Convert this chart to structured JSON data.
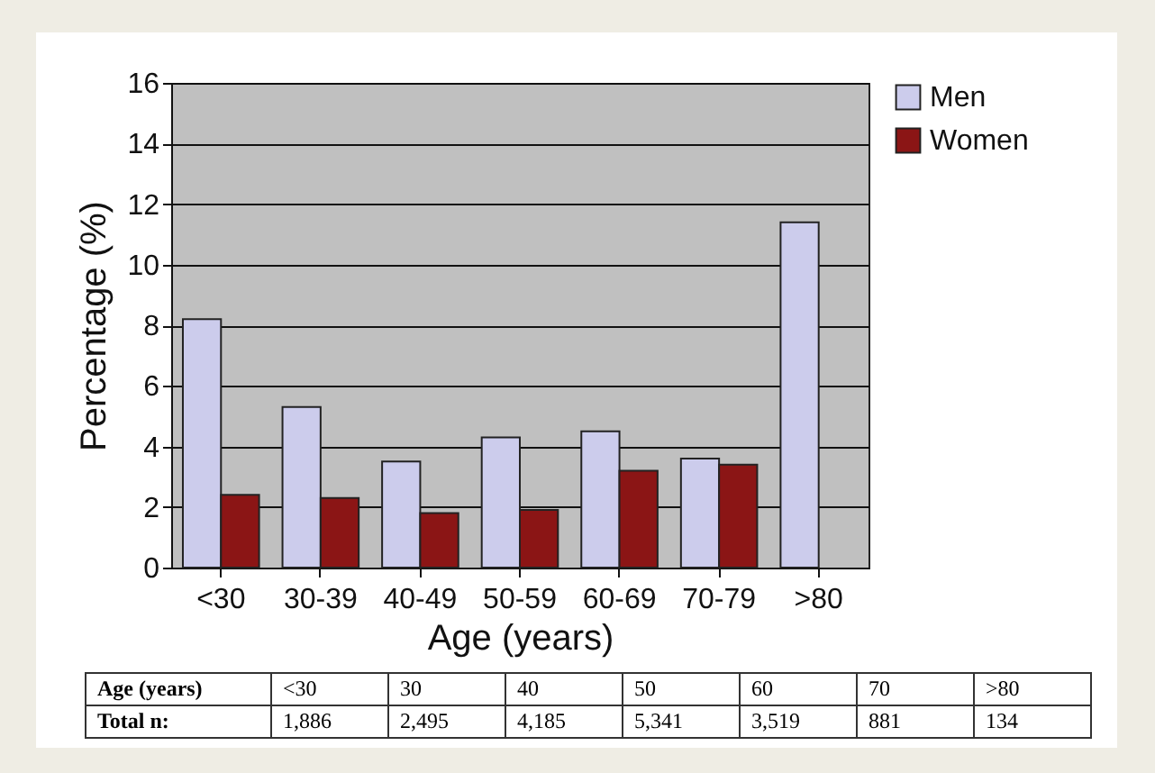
{
  "chart_data": {
    "type": "bar",
    "xlabel": "Age (years)",
    "ylabel": "Percentage (%)",
    "categories": [
      "<30",
      "30-39",
      "40-49",
      "50-59",
      "60-69",
      "70-79",
      ">80"
    ],
    "series": [
      {
        "name": "Men",
        "color": "#ccccec",
        "values": [
          8.2,
          5.3,
          3.5,
          4.3,
          4.5,
          3.6,
          11.4
        ]
      },
      {
        "name": "Women",
        "color": "#8b1515",
        "values": [
          2.4,
          2.3,
          1.8,
          1.9,
          3.2,
          3.4,
          null
        ]
      }
    ],
    "ylim": [
      0,
      16
    ],
    "yticks": [
      0,
      2,
      4,
      6,
      8,
      10,
      12,
      14,
      16
    ],
    "grid": "y",
    "legend": "right",
    "annotations": [
      "Age (years)",
      "<30",
      "30",
      "40",
      "50",
      "60",
      "70",
      ">80",
      "Total n:",
      "1,886",
      "2,495",
      "4,185",
      "5,341",
      "3,519",
      "881",
      "134"
    ]
  }
}
